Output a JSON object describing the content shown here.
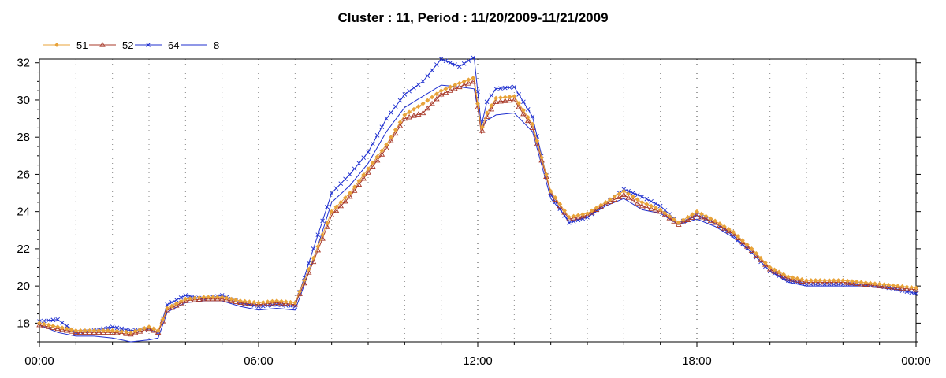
{
  "chart_data": {
    "type": "line",
    "title": "Cluster : 11, Period : 11/20/2009-11/21/2009",
    "xlabel": "",
    "ylabel": "",
    "x_unit": "hours since 00:00 on 11/20/2009",
    "x": [
      0,
      0.5,
      1,
      1.5,
      2,
      2.5,
      3,
      3.25,
      3.5,
      4,
      4.5,
      5,
      5.5,
      6,
      6.5,
      7,
      7.5,
      8,
      8.5,
      9,
      9.5,
      10,
      10.5,
      11,
      11.5,
      11.9,
      12.1,
      12.25,
      12.5,
      13,
      13.5,
      14,
      14.5,
      15,
      15.5,
      16,
      16.5,
      17,
      17.5,
      18,
      18.5,
      19,
      19.5,
      20,
      20.5,
      21,
      21.5,
      22,
      22.5,
      23,
      23.5,
      24
    ],
    "series": [
      {
        "name": "51",
        "color": "#e8a33a",
        "marker": "diamond",
        "values": [
          18.0,
          17.8,
          17.6,
          17.6,
          17.6,
          17.5,
          17.8,
          17.6,
          18.8,
          19.3,
          19.4,
          19.4,
          19.2,
          19.1,
          19.2,
          19.1,
          21.5,
          24.0,
          25.0,
          26.3,
          27.6,
          29.2,
          29.8,
          30.5,
          30.9,
          31.2,
          28.4,
          29.3,
          30.1,
          30.2,
          28.7,
          25.1,
          23.7,
          23.9,
          24.5,
          25.1,
          24.5,
          24.1,
          23.4,
          24.0,
          23.5,
          22.9,
          22.0,
          21.0,
          20.5,
          20.3,
          20.3,
          20.3,
          20.2,
          20.1,
          20.0,
          19.9
        ]
      },
      {
        "name": "52",
        "color": "#a83a2a",
        "marker": "triangle",
        "values": [
          17.9,
          17.7,
          17.5,
          17.5,
          17.5,
          17.4,
          17.7,
          17.5,
          18.7,
          19.2,
          19.3,
          19.3,
          19.1,
          19.0,
          19.1,
          19.0,
          21.3,
          23.8,
          24.8,
          26.1,
          27.4,
          29.0,
          29.3,
          30.3,
          30.7,
          31.0,
          28.2,
          29.1,
          29.9,
          30.0,
          28.5,
          25.0,
          23.6,
          23.8,
          24.4,
          24.9,
          24.3,
          24.0,
          23.3,
          23.8,
          23.4,
          22.8,
          21.9,
          20.9,
          20.4,
          20.2,
          20.2,
          20.2,
          20.1,
          20.0,
          19.9,
          19.8
        ]
      },
      {
        "name": "64",
        "color": "#1f2fcf",
        "marker": "x",
        "values": [
          18.1,
          18.2,
          17.5,
          17.6,
          17.8,
          17.6,
          17.7,
          17.5,
          19.0,
          19.5,
          19.3,
          19.5,
          19.1,
          18.9,
          19.0,
          18.9,
          22.0,
          25.0,
          26.0,
          27.2,
          29.0,
          30.3,
          31.0,
          32.2,
          31.8,
          32.3,
          28.6,
          29.9,
          30.6,
          30.7,
          29.1,
          24.9,
          23.4,
          23.7,
          24.4,
          25.2,
          24.8,
          24.3,
          23.4,
          23.8,
          23.4,
          22.7,
          21.8,
          20.8,
          20.3,
          20.1,
          20.1,
          20.1,
          20.1,
          20.0,
          19.8,
          19.6
        ]
      },
      {
        "name": "8",
        "color": "#1f2fcf",
        "marker": "none",
        "values": [
          17.9,
          17.5,
          17.3,
          17.3,
          17.2,
          17.0,
          17.1,
          17.2,
          18.6,
          19.1,
          19.2,
          19.2,
          18.9,
          18.7,
          18.8,
          18.7,
          21.4,
          24.5,
          25.4,
          26.6,
          28.3,
          29.6,
          30.2,
          30.8,
          30.7,
          30.6,
          28.5,
          28.9,
          29.2,
          29.3,
          28.3,
          24.7,
          23.5,
          23.7,
          24.3,
          24.7,
          24.1,
          23.9,
          23.3,
          23.6,
          23.2,
          22.6,
          21.8,
          20.8,
          20.2,
          20.0,
          20.0,
          20.0,
          20.0,
          19.9,
          19.8,
          19.6
        ]
      }
    ],
    "xticks": [
      0,
      6,
      12,
      18,
      24
    ],
    "xtick_labels": [
      "00:00",
      "06:00",
      "12:00",
      "18:00",
      "00:00"
    ],
    "yticks": [
      18,
      20,
      22,
      24,
      26,
      28,
      30,
      32
    ],
    "xlim": [
      0,
      24
    ],
    "ylim": [
      17,
      32.2
    ],
    "grid": "dotted vertical lines every 1 hour",
    "legend_position": "top-left"
  }
}
